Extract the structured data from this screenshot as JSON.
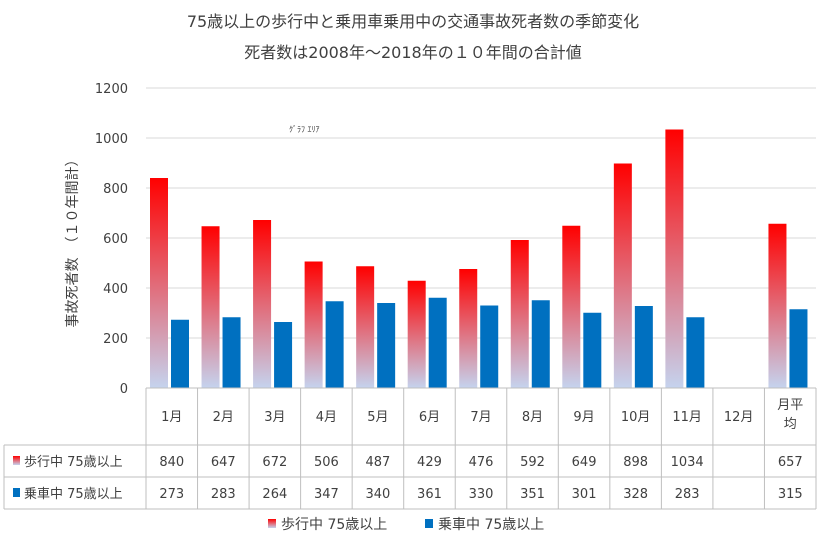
{
  "chart_data": {
    "type": "bar",
    "title": "75歳以上の歩行中と乗用車乗用中の交通事故死者数の季節変化",
    "subtitle": "死者数は2008年～2018年の１０年間の合計値",
    "ylabel": "事故死者数　（１０年間計）",
    "ylim": [
      0,
      1200
    ],
    "yticks": [
      0,
      200,
      400,
      600,
      800,
      1000,
      1200
    ],
    "categories": [
      "1月",
      "2月",
      "3月",
      "4月",
      "5月",
      "6月",
      "7月",
      "8月",
      "9月",
      "10月",
      "11月",
      "12月",
      "月平均"
    ],
    "category_display": [
      [
        "1月"
      ],
      [
        "2月"
      ],
      [
        "3月"
      ],
      [
        "4月"
      ],
      [
        "5月"
      ],
      [
        "6月"
      ],
      [
        "7月"
      ],
      [
        "8月"
      ],
      [
        "9月"
      ],
      [
        "10月"
      ],
      [
        "11月"
      ],
      [
        "12月"
      ],
      [
        "月平",
        "均"
      ]
    ],
    "series": [
      {
        "name": "歩行中 75歳以上",
        "color_top": "#ff0000",
        "color_bottom": "#c5d3ee",
        "values": [
          840,
          647,
          672,
          506,
          487,
          429,
          476,
          592,
          649,
          898,
          1034,
          null,
          657
        ],
        "labels": [
          "840",
          "647",
          "672",
          "506",
          "487",
          "429",
          "476",
          "592",
          "649",
          "898",
          "1034",
          "",
          "657"
        ]
      },
      {
        "name": "乗車中 75歳以上",
        "color": "#0070c0",
        "values": [
          273,
          283,
          264,
          347,
          340,
          361,
          330,
          351,
          301,
          328,
          283,
          null,
          315
        ],
        "labels": [
          "273",
          "283",
          "264",
          "347",
          "340",
          "361",
          "330",
          "351",
          "301",
          "328",
          "283",
          "",
          "315"
        ]
      }
    ],
    "annotation": "ｸﾞﾗﾌ ｴﾘｱ",
    "grid": true,
    "legend_position": "bottom"
  }
}
